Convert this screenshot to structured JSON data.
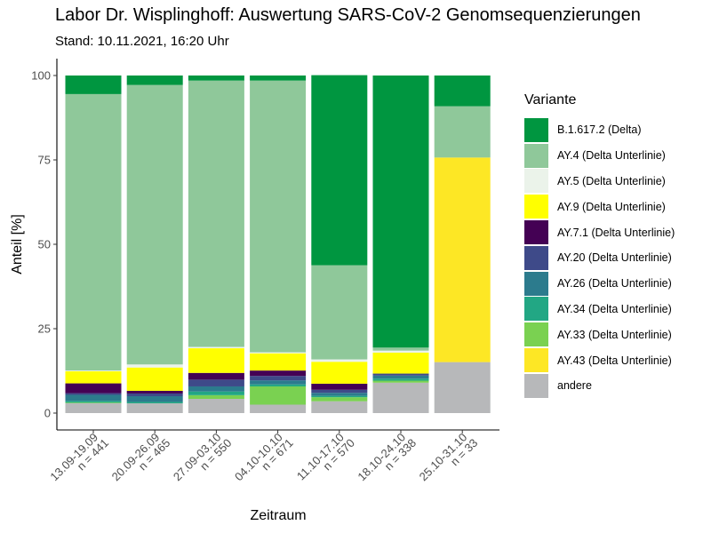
{
  "header": {
    "title": "Labor Dr. Wisplinghoff: Auswertung SARS-CoV-2 Genomsequenzierungen",
    "subtitle": "Stand: 10.11.2021, 16:20 Uhr"
  },
  "chart_data": {
    "type": "bar",
    "stacked": true,
    "xlabel": "Zeitraum",
    "ylabel": "Anteil [%]",
    "ylim": [
      0,
      100
    ],
    "yticks": [
      0,
      25,
      50,
      75,
      100
    ],
    "grid": false,
    "legend_title": "Variante",
    "legend_position": "right",
    "categories": [
      {
        "range": "13.09-19.09",
        "n": "n = 441"
      },
      {
        "range": "20.09-26.09",
        "n": "n = 465"
      },
      {
        "range": "27.09-03.10",
        "n": "n = 550"
      },
      {
        "range": "04.10-10.10",
        "n": "n = 671"
      },
      {
        "range": "11.10-17.10",
        "n": "n = 570"
      },
      {
        "range": "18.10-24.10",
        "n": "n = 338"
      },
      {
        "range": "25.10-31.10",
        "n": "n = 33"
      }
    ],
    "series": [
      {
        "name": "B.1.617.2 (Delta)",
        "color": "#009640",
        "values": [
          5.5,
          2.8,
          1.5,
          1.5,
          56.3,
          80.6,
          9.1
        ]
      },
      {
        "name": "AY.4 (Delta Unterlinie)",
        "color": "#8FC89A",
        "values": [
          81.9,
          82.8,
          78.9,
          80.5,
          27.9,
          0.9,
          15.2
        ]
      },
      {
        "name": "AY.5 (Delta Unterlinie)",
        "color": "#EBF3EA",
        "values": [
          0.2,
          0.9,
          0.4,
          0.3,
          0.7,
          0.6,
          0.0
        ]
      },
      {
        "name": "AY.9 (Delta Unterlinie)",
        "color": "#FFFF00",
        "values": [
          3.6,
          6.9,
          7.3,
          5.1,
          6.5,
          6.2,
          0.0
        ]
      },
      {
        "name": "AY.7.1 (Delta Unterlinie)",
        "color": "#440154",
        "values": [
          2.9,
          0.8,
          2.0,
          1.6,
          1.8,
          0.0,
          0.0
        ]
      },
      {
        "name": "AY.20 (Delta Unterlinie)",
        "color": "#3E4A89",
        "values": [
          0.5,
          0.8,
          2.0,
          1.3,
          0.9,
          0.6,
          0.0
        ]
      },
      {
        "name": "AY.26 (Delta Unterlinie)",
        "color": "#2C7B8D",
        "values": [
          1.8,
          1.7,
          1.5,
          1.2,
          0.9,
          0.9,
          0.0
        ]
      },
      {
        "name": "AY.34 (Delta Unterlinie)",
        "color": "#22A784",
        "values": [
          0.5,
          0.4,
          1.1,
          0.6,
          0.4,
          0.6,
          0.0
        ]
      },
      {
        "name": "AY.33 (Delta Unterlinie)",
        "color": "#7AD151",
        "values": [
          0.2,
          0.0,
          1.1,
          5.4,
          1.2,
          0.6,
          0.0
        ]
      },
      {
        "name": "AY.43 (Delta Unterlinie)",
        "color": "#FDE725",
        "values": [
          0.0,
          0.0,
          0.0,
          0.0,
          0.0,
          0.0,
          60.6
        ]
      },
      {
        "name": "andere",
        "color": "#B7B8BA",
        "values": [
          2.9,
          2.9,
          4.2,
          2.5,
          3.5,
          9.0,
          15.1
        ]
      }
    ]
  }
}
